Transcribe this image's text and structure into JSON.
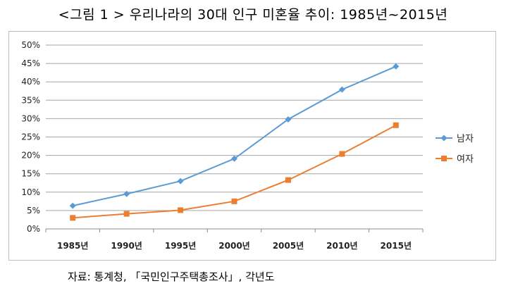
{
  "title": "<그림 1 > 우리나라의 30대 인구 미혼율 추이: 1985년~2015년",
  "source": "자료: 통계청, 「국민인구주택총조사」, 각년도",
  "chart_data": {
    "type": "line",
    "title": "",
    "xlabel": "",
    "ylabel": "",
    "categories": [
      "1985년",
      "1990년",
      "1995년",
      "2000년",
      "2005년",
      "2010년",
      "2015년"
    ],
    "y_ticks": [
      "0%",
      "5%",
      "10%",
      "15%",
      "20%",
      "25%",
      "30%",
      "35%",
      "40%",
      "45%",
      "50%"
    ],
    "ylim": [
      0,
      50
    ],
    "grid": true,
    "legend_position": "right",
    "series": [
      {
        "name": "남자",
        "values": [
          6.3,
          9.5,
          13.0,
          19.1,
          29.8,
          37.9,
          44.2
        ],
        "color": "#5B9BD5",
        "marker": "diamond"
      },
      {
        "name": "여자",
        "values": [
          3.0,
          4.1,
          5.1,
          7.5,
          13.3,
          20.4,
          28.2
        ],
        "color": "#ED7D31",
        "marker": "square"
      }
    ]
  }
}
